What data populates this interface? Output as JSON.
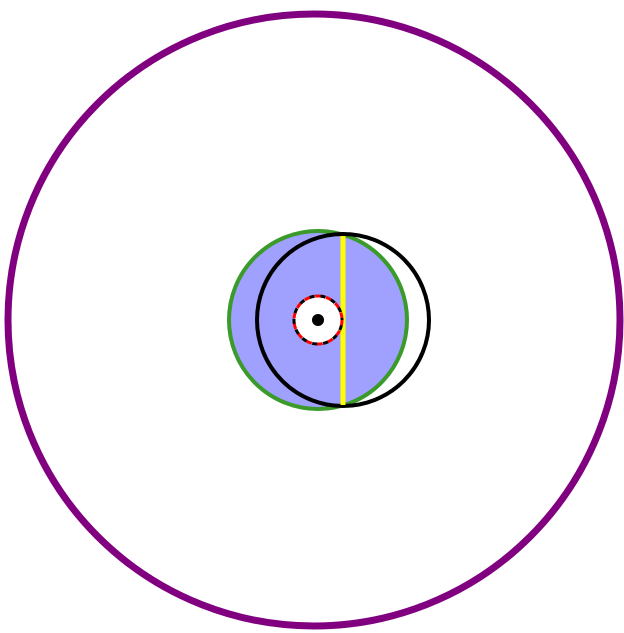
{
  "colors": {
    "background": "#ffffff",
    "outer_ring": "#800080",
    "green_circle_stroke": "#3a9a2a",
    "green_circle_fill": "#a0a0ff",
    "black_circle_stroke": "#000000",
    "yellow_chord": "#ffff00",
    "red_dashed_ring": "#ff0000",
    "black_dashed_ring": "#000000",
    "center_dot": "#000000",
    "inner_disc_fill": "#ffffff"
  },
  "shapes": [
    "outer-purple-circle",
    "green-filled-circle",
    "black-outline-circle",
    "yellow-chord-line",
    "red-black-dashed-small-circle",
    "black-center-dot"
  ]
}
